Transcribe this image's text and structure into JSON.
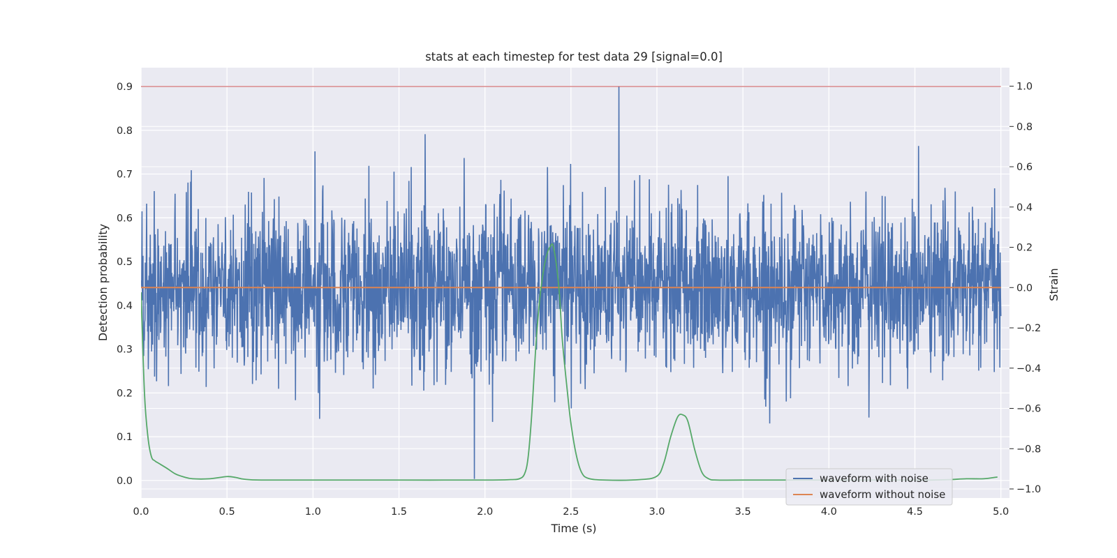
{
  "chart_data": {
    "type": "line",
    "title": "stats at each timestep for test data 29 [signal=0.0]",
    "xlabel": "Time (s)",
    "ylabel_left": "Detection probability",
    "ylabel_right": "Strain",
    "xlim": [
      0.0,
      5.05
    ],
    "ylim_left": [
      -0.04,
      0.943
    ],
    "ylim_right": [
      -1.045,
      1.092
    ],
    "x_ticks": [
      "0.0",
      "0.5",
      "1.0",
      "1.5",
      "2.0",
      "2.5",
      "3.0",
      "3.5",
      "4.0",
      "4.5",
      "5.0"
    ],
    "x_tick_values": [
      0.0,
      0.5,
      1.0,
      1.5,
      2.0,
      2.5,
      3.0,
      3.5,
      4.0,
      4.5,
      5.0
    ],
    "y_left_ticks": [
      "0.0",
      "0.1",
      "0.2",
      "0.3",
      "0.4",
      "0.5",
      "0.6",
      "0.7",
      "0.8",
      "0.9"
    ],
    "y_left_tick_values": [
      0.0,
      0.1,
      0.2,
      0.3,
      0.4,
      0.5,
      0.6,
      0.7,
      0.8,
      0.9
    ],
    "y_right_ticks": [
      "1.0",
      "0.8",
      "0.6",
      "0.4",
      "0.2",
      "0.0",
      "−0.2",
      "−0.4",
      "−0.6",
      "−0.8",
      "−1.0"
    ],
    "y_right_tick_values": [
      1.0,
      0.8,
      0.6,
      0.4,
      0.2,
      0.0,
      -0.2,
      -0.4,
      -0.6,
      -0.8,
      -1.0
    ],
    "grid": true,
    "legend_position": "bottom-right",
    "series": [
      {
        "name": "waveform with noise",
        "axis": "right",
        "color": "#4c72b0",
        "description_kind": "noise",
        "x_range": [
          0.0,
          5.0
        ],
        "mean": 0.0,
        "approx_std": 0.2,
        "extrema": {
          "max": 1.0,
          "min": -0.95
        }
      },
      {
        "name": "waveform without noise",
        "axis": "right",
        "color": "#dd8452",
        "x": [
          0.0,
          5.0
        ],
        "y": [
          0.0,
          0.0
        ]
      },
      {
        "axis": "left",
        "color": "#55a868",
        "x": [
          0.0,
          0.02,
          0.04,
          0.06,
          0.08,
          0.1,
          0.15,
          0.2,
          0.25,
          0.3,
          0.4,
          0.5,
          0.55,
          0.6,
          0.7,
          1.0,
          1.5,
          2.0,
          2.15,
          2.2,
          2.23,
          2.25,
          2.27,
          2.29,
          2.3,
          2.32,
          2.35,
          2.38,
          2.4,
          2.43,
          2.45,
          2.48,
          2.5,
          2.53,
          2.56,
          2.6,
          2.7,
          2.9,
          3.0,
          3.04,
          3.08,
          3.12,
          3.15,
          3.18,
          3.22,
          3.26,
          3.3,
          3.35,
          3.5,
          4.0,
          4.5,
          4.6,
          4.7,
          4.8,
          4.9,
          4.98
        ],
        "y": [
          0.43,
          0.2,
          0.1,
          0.055,
          0.045,
          0.04,
          0.028,
          0.015,
          0.008,
          0.004,
          0.004,
          0.009,
          0.007,
          0.003,
          0.001,
          0.001,
          0.001,
          0.001,
          0.002,
          0.004,
          0.015,
          0.05,
          0.14,
          0.27,
          0.33,
          0.42,
          0.5,
          0.535,
          0.53,
          0.44,
          0.32,
          0.2,
          0.13,
          0.06,
          0.02,
          0.005,
          0.001,
          0.002,
          0.01,
          0.04,
          0.1,
          0.145,
          0.15,
          0.135,
          0.07,
          0.02,
          0.004,
          0.001,
          0.001,
          0.001,
          0.001,
          0.001,
          0.002,
          0.004,
          0.004,
          0.008
        ]
      },
      {
        "axis": "left",
        "color": "#c44e52",
        "x": [
          0.0,
          5.0
        ],
        "y": [
          0.9,
          0.9
        ]
      }
    ]
  }
}
